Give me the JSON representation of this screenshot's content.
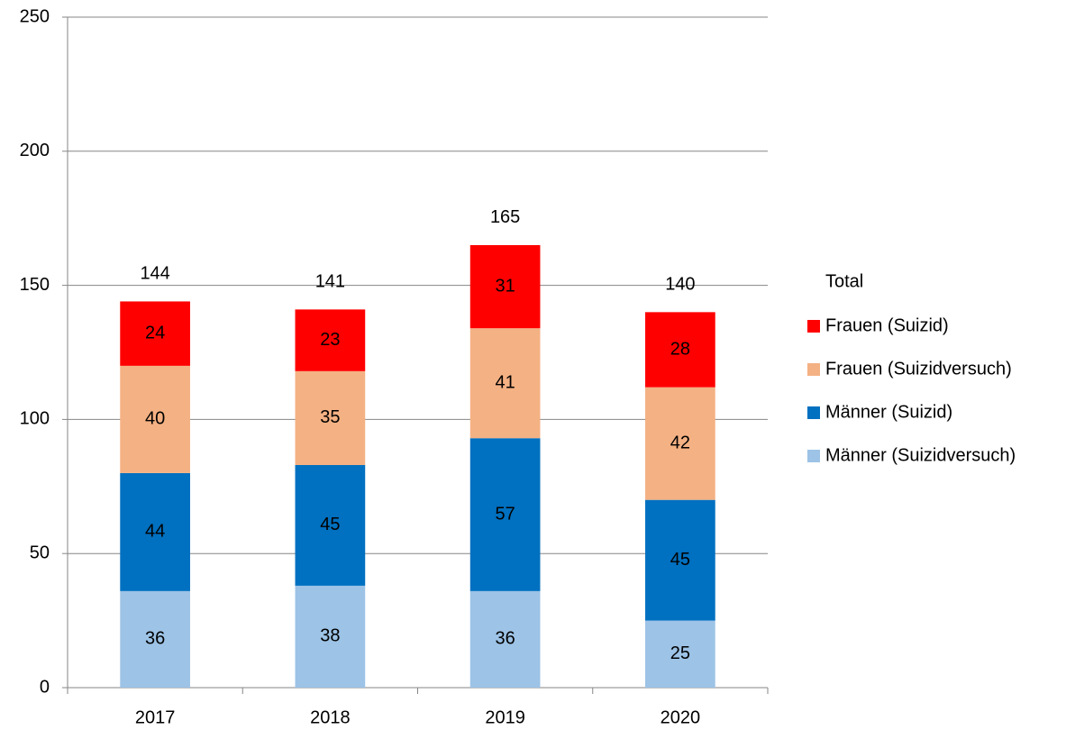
{
  "chart_data": {
    "type": "stacked_bar",
    "categories": [
      "2017",
      "2018",
      "2019",
      "2020"
    ],
    "series": [
      {
        "name": "Männer (Suizidversuch)",
        "color": "#9dc3e6",
        "values": [
          36,
          38,
          36,
          25
        ]
      },
      {
        "name": "Männer (Suizid)",
        "color": "#0070c0",
        "values": [
          44,
          45,
          57,
          45
        ]
      },
      {
        "name": "Frauen (Suizidversuch)",
        "color": "#f4b183",
        "values": [
          40,
          35,
          41,
          42
        ]
      },
      {
        "name": "Frauen (Suizid)",
        "color": "#ff0000",
        "values": [
          24,
          23,
          31,
          28
        ]
      }
    ],
    "totals": {
      "name": "Total",
      "values": [
        144,
        141,
        165,
        140
      ]
    },
    "ylim": [
      0,
      250
    ],
    "yticks": [
      0,
      50,
      100,
      150,
      200,
      250
    ],
    "grid": true,
    "legend": "right"
  }
}
